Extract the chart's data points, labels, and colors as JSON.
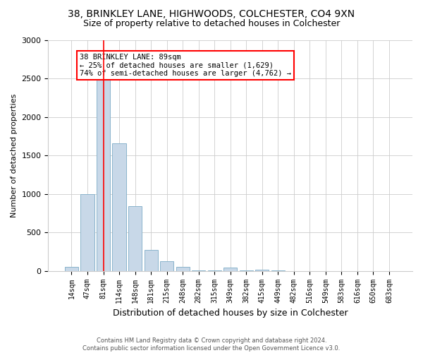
{
  "title_line1": "38, BRINKLEY LANE, HIGHWOODS, COLCHESTER, CO4 9XN",
  "title_line2": "Size of property relative to detached houses in Colchester",
  "xlabel": "Distribution of detached houses by size in Colchester",
  "ylabel": "Number of detached properties",
  "bar_labels": [
    "14sqm",
    "47sqm",
    "81sqm",
    "114sqm",
    "148sqm",
    "181sqm",
    "215sqm",
    "248sqm",
    "282sqm",
    "315sqm",
    "349sqm",
    "382sqm",
    "415sqm",
    "449sqm",
    "482sqm",
    "516sqm",
    "549sqm",
    "583sqm",
    "616sqm",
    "650sqm",
    "683sqm"
  ],
  "bar_values": [
    50,
    1000,
    2480,
    1660,
    840,
    270,
    125,
    55,
    5,
    5,
    40,
    5,
    20,
    5,
    0,
    0,
    0,
    0,
    0,
    0,
    0
  ],
  "bar_color": "#c8d8e8",
  "bar_edge_color": "#8ab4cc",
  "red_line_index": 2,
  "ylim": [
    0,
    3000
  ],
  "yticks": [
    0,
    500,
    1000,
    1500,
    2000,
    2500,
    3000
  ],
  "annotation_title": "38 BRINKLEY LANE: 89sqm",
  "annotation_line2": "← 25% of detached houses are smaller (1,629)",
  "annotation_line3": "74% of semi-detached houses are larger (4,762) →",
  "footnote1": "Contains HM Land Registry data © Crown copyright and database right 2024.",
  "footnote2": "Contains public sector information licensed under the Open Government Licence v3.0.",
  "bg_color": "#ffffff",
  "grid_color": "#cccccc",
  "title_fontsize": 10,
  "subtitle_fontsize": 9,
  "xlabel_fontsize": 9,
  "ylabel_fontsize": 8,
  "tick_fontsize": 7,
  "footnote_fontsize": 6
}
